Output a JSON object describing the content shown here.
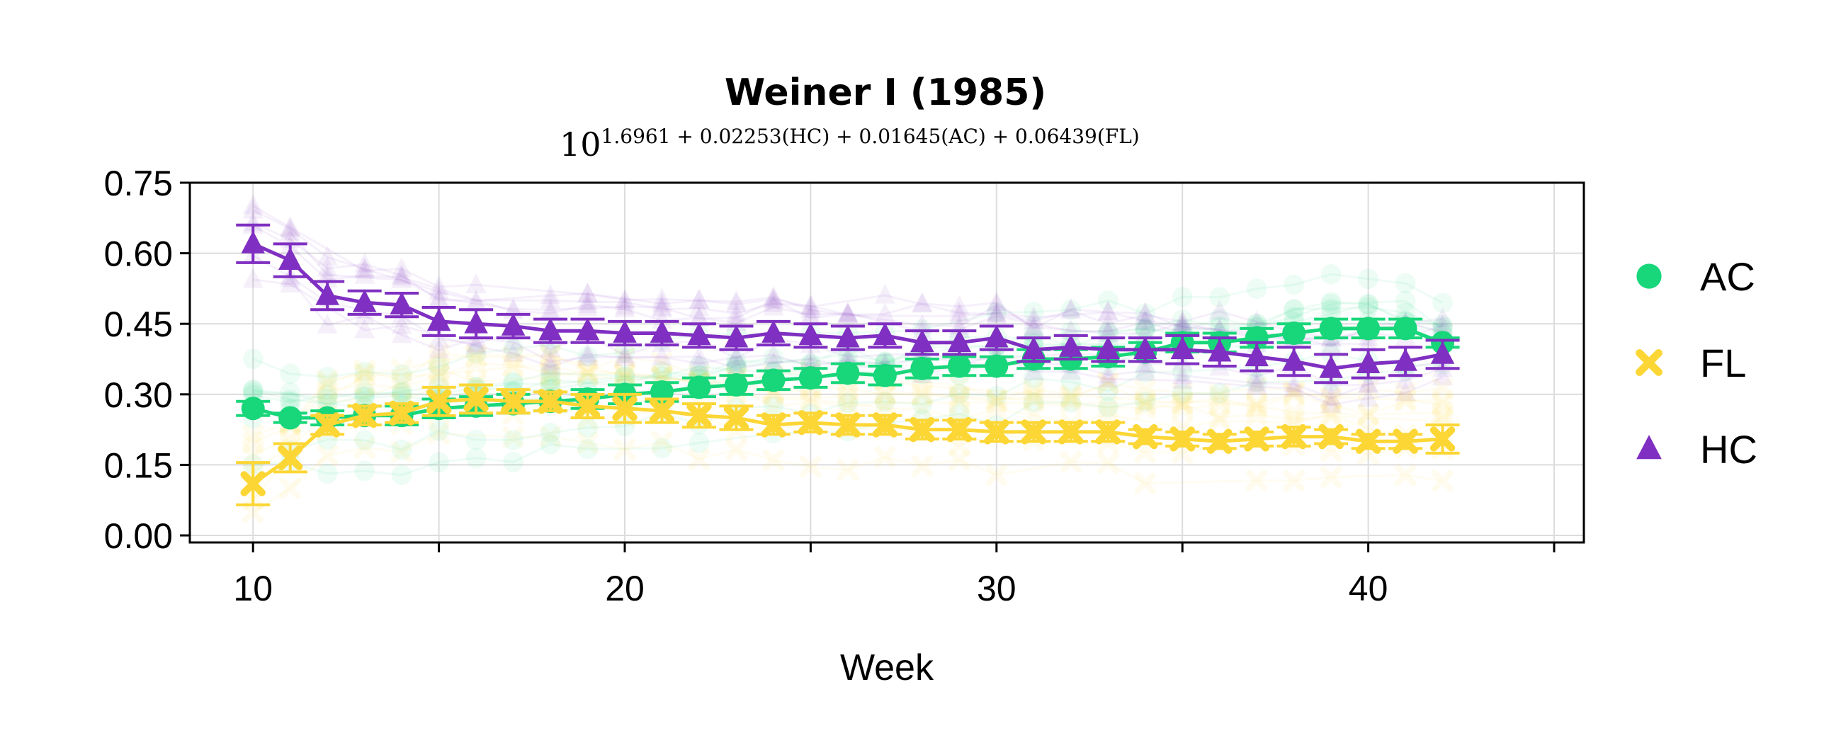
{
  "chart_data": {
    "type": "line",
    "title": "Weiner I (1985)",
    "subtitle": {
      "base": "10",
      "exponent": "1.6961 + 0.02253(HC) + 0.01645(AC) + 0.06439(FL)"
    },
    "xlabel": "Week",
    "ylabel": "",
    "xlim": [
      8.3,
      45.8
    ],
    "ylim": [
      -0.015,
      0.75
    ],
    "xticks": [
      10,
      15,
      20,
      25,
      30,
      35,
      40,
      45
    ],
    "xtick_labels": [
      "10",
      "",
      "20",
      "",
      "30",
      "",
      "40",
      ""
    ],
    "yticks": [
      0.0,
      0.15,
      0.3,
      0.45,
      0.6,
      0.75
    ],
    "ytick_labels": [
      "0.00",
      "0.15",
      "0.30",
      "0.45",
      "0.60",
      "0.75"
    ],
    "grid": true,
    "legend_position": "right",
    "series": [
      {
        "name": "AC",
        "color": "#18d67a",
        "marker": "circle",
        "x": [
          10,
          11,
          12,
          13,
          14,
          15,
          16,
          17,
          18,
          19,
          20,
          21,
          22,
          23,
          24,
          25,
          26,
          27,
          28,
          29,
          30,
          31,
          32,
          33,
          34,
          35,
          36,
          37,
          38,
          39,
          40,
          41,
          42
        ],
        "y": [
          0.27,
          0.25,
          0.25,
          0.255,
          0.255,
          0.27,
          0.275,
          0.28,
          0.285,
          0.29,
          0.3,
          0.305,
          0.315,
          0.32,
          0.33,
          0.335,
          0.345,
          0.34,
          0.355,
          0.36,
          0.36,
          0.375,
          0.375,
          0.38,
          0.39,
          0.41,
          0.41,
          0.42,
          0.43,
          0.44,
          0.44,
          0.44,
          0.41
        ],
        "err": [
          0.015,
          0.01,
          0.015,
          0.02,
          0.02,
          0.02,
          0.02,
          0.02,
          0.02,
          0.02,
          0.02,
          0.02,
          0.02,
          0.02,
          0.02,
          0.02,
          0.02,
          0.02,
          0.02,
          0.02,
          0.02,
          0.02,
          0.02,
          0.02,
          0.02,
          0.02,
          0.02,
          0.02,
          0.02,
          0.02,
          0.02,
          0.02,
          0.01
        ]
      },
      {
        "name": "FL",
        "color": "#fcd634",
        "marker": "x",
        "x": [
          10,
          11,
          12,
          13,
          14,
          15,
          16,
          17,
          18,
          19,
          20,
          21,
          22,
          23,
          24,
          25,
          26,
          27,
          28,
          29,
          30,
          31,
          32,
          33,
          34,
          35,
          36,
          37,
          38,
          39,
          40,
          41,
          42
        ],
        "y": [
          0.11,
          0.165,
          0.235,
          0.255,
          0.26,
          0.285,
          0.29,
          0.285,
          0.285,
          0.275,
          0.27,
          0.265,
          0.255,
          0.25,
          0.235,
          0.24,
          0.235,
          0.235,
          0.225,
          0.225,
          0.22,
          0.22,
          0.22,
          0.22,
          0.21,
          0.205,
          0.2,
          0.205,
          0.21,
          0.21,
          0.2,
          0.2,
          0.205
        ],
        "err": [
          0.045,
          0.03,
          0.02,
          0.02,
          0.02,
          0.03,
          0.03,
          0.025,
          0.02,
          0.025,
          0.03,
          0.025,
          0.025,
          0.025,
          0.02,
          0.02,
          0.02,
          0.02,
          0.02,
          0.02,
          0.02,
          0.02,
          0.02,
          0.02,
          0.015,
          0.015,
          0.015,
          0.015,
          0.02,
          0.015,
          0.015,
          0.015,
          0.03
        ]
      },
      {
        "name": "HC",
        "color": "#7f2fc1",
        "marker": "triangle",
        "x": [
          10,
          11,
          12,
          13,
          14,
          15,
          16,
          17,
          18,
          19,
          20,
          21,
          22,
          23,
          24,
          25,
          26,
          27,
          28,
          29,
          30,
          31,
          32,
          33,
          34,
          35,
          36,
          37,
          38,
          39,
          40,
          41,
          42
        ],
        "y": [
          0.62,
          0.585,
          0.51,
          0.495,
          0.49,
          0.455,
          0.45,
          0.445,
          0.435,
          0.435,
          0.43,
          0.43,
          0.425,
          0.42,
          0.43,
          0.425,
          0.42,
          0.425,
          0.41,
          0.41,
          0.42,
          0.395,
          0.4,
          0.395,
          0.395,
          0.395,
          0.39,
          0.38,
          0.37,
          0.355,
          0.365,
          0.37,
          0.385
        ],
        "err": [
          0.04,
          0.035,
          0.03,
          0.025,
          0.025,
          0.03,
          0.03,
          0.025,
          0.025,
          0.025,
          0.025,
          0.025,
          0.025,
          0.025,
          0.025,
          0.025,
          0.025,
          0.025,
          0.025,
          0.025,
          0.025,
          0.025,
          0.025,
          0.025,
          0.025,
          0.03,
          0.03,
          0.03,
          0.03,
          0.03,
          0.03,
          0.03,
          0.03
        ]
      }
    ]
  }
}
